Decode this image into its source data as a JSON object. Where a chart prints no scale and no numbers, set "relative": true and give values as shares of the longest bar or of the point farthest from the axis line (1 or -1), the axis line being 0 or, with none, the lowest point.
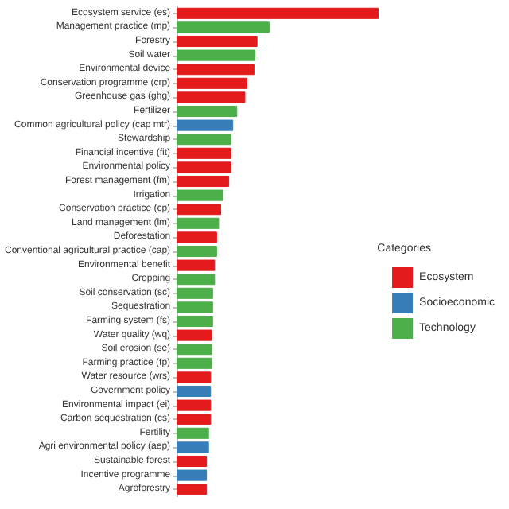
{
  "chart_data": {
    "type": "bar",
    "orientation": "horizontal",
    "stacked": true,
    "relative": true,
    "legend": "right",
    "legend_title": "Categories",
    "categories": [
      "Ecosystem service (es)",
      "Management practice (mp)",
      "Forestry",
      "Soil water",
      "Environmental device",
      "Conservation programme (crp)",
      "Greenhouse gas (ghg)",
      "Fertilizer",
      "Common agricultural policy (cap mtr)",
      "Stewardship",
      "Financial incentive (fit)",
      "Environmental policy",
      "Forest management (fm)",
      "Irrigation",
      "Conservation practice (cp)",
      "Land management (lm)",
      "Deforestation",
      "Conventional agricultural practice (cap)",
      "Environmental benefit",
      "Cropping",
      "Soil conservation (sc)",
      "Sequestration",
      "Farming system (fs)",
      "Water quality (wq)",
      "Soil erosion (se)",
      "Farming practice (fp)",
      "Water resource (wrs)",
      "Government policy",
      "Environmental impact (ei)",
      "Carbon sequestration (cs)",
      "Fertility",
      "Agri environmental policy (aep)",
      "Sustainable forest",
      "Incentive programme",
      "Agroforestry"
    ],
    "series": [
      {
        "name": "Ecosystem",
        "color": "#e41a1c",
        "values": [
          1,
          null,
          0.4,
          null,
          0.385,
          0.35,
          0.34,
          null,
          null,
          null,
          0.27,
          0.27,
          0.26,
          null,
          0.22,
          null,
          0.2,
          null,
          0.19,
          null,
          null,
          null,
          null,
          0.175,
          null,
          null,
          0.17,
          null,
          0.17,
          0.17,
          null,
          null,
          0.15,
          null,
          0.15
        ]
      },
      {
        "name": "Socioeconomic",
        "color": "#377eb8",
        "values": [
          null,
          null,
          null,
          null,
          null,
          null,
          null,
          null,
          0.28,
          null,
          null,
          null,
          null,
          null,
          null,
          null,
          null,
          null,
          null,
          null,
          null,
          null,
          null,
          null,
          null,
          null,
          null,
          0.17,
          null,
          null,
          null,
          0.16,
          null,
          0.15,
          null
        ]
      },
      {
        "name": "Technology",
        "color": "#4daf4a",
        "values": [
          null,
          0.46,
          null,
          0.39,
          null,
          null,
          null,
          0.3,
          null,
          0.27,
          null,
          null,
          null,
          0.23,
          null,
          0.21,
          null,
          0.2,
          null,
          0.19,
          0.18,
          0.18,
          0.18,
          null,
          0.175,
          0.175,
          null,
          null,
          null,
          null,
          0.16,
          null,
          null,
          null,
          null
        ]
      }
    ]
  }
}
